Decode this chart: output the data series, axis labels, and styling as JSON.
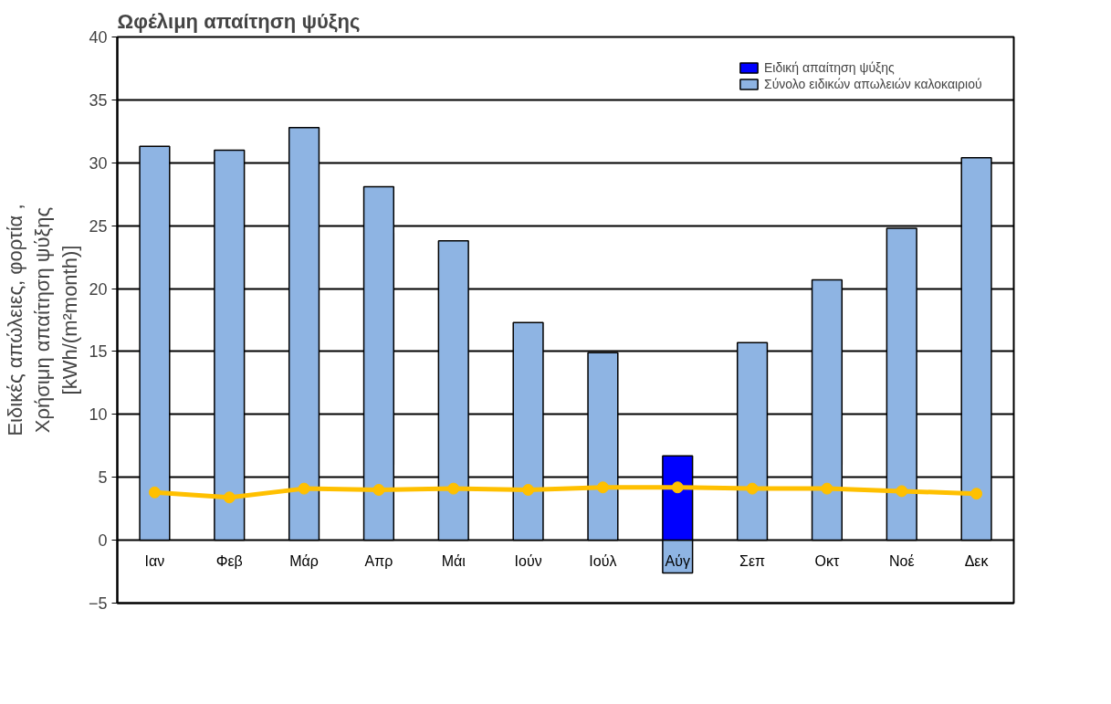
{
  "chart_data": {
    "type": "bar",
    "title": "Ωφέλιμη απαίτηση ψύξης",
    "ylabel": "Ειδικές απώλειες, φορτία ,\nΧρήσιμη απαίτηση ψύξης\n[kWh/(m²month)]",
    "categories": [
      "Ιαν",
      "Φεβ",
      "Μάρ",
      "Απρ",
      "Μάι",
      "Ιούν",
      "Ιούλ",
      "Αύγ",
      "Σεπ",
      "Οκτ",
      "Νοέ",
      "Δεκ"
    ],
    "series": [
      {
        "name": "Σύνολο ειδικών απωλειών καλοκαιριού",
        "color": "#8eb4e3",
        "values": [
          31.3,
          31.0,
          32.8,
          28.1,
          23.8,
          17.3,
          14.9,
          -2.6,
          15.7,
          20.7,
          24.8,
          30.4
        ]
      },
      {
        "name": "Ειδική απαίτηση ψύξης",
        "color": "#0000ff",
        "values": [
          null,
          null,
          null,
          null,
          null,
          null,
          null,
          6.7,
          null,
          null,
          null,
          null
        ]
      },
      {
        "type": "line",
        "color": "#ffc000",
        "values": [
          3.8,
          3.4,
          4.1,
          4.0,
          4.1,
          4.0,
          4.2,
          4.2,
          4.1,
          4.1,
          3.9,
          3.7
        ]
      }
    ],
    "ylim": [
      -5,
      40
    ],
    "yticks": [
      -5,
      0,
      5,
      10,
      15,
      20,
      25,
      30,
      35,
      40
    ],
    "grid": "y",
    "legend": "top right",
    "marker": "circle",
    "line_style": "solid"
  }
}
